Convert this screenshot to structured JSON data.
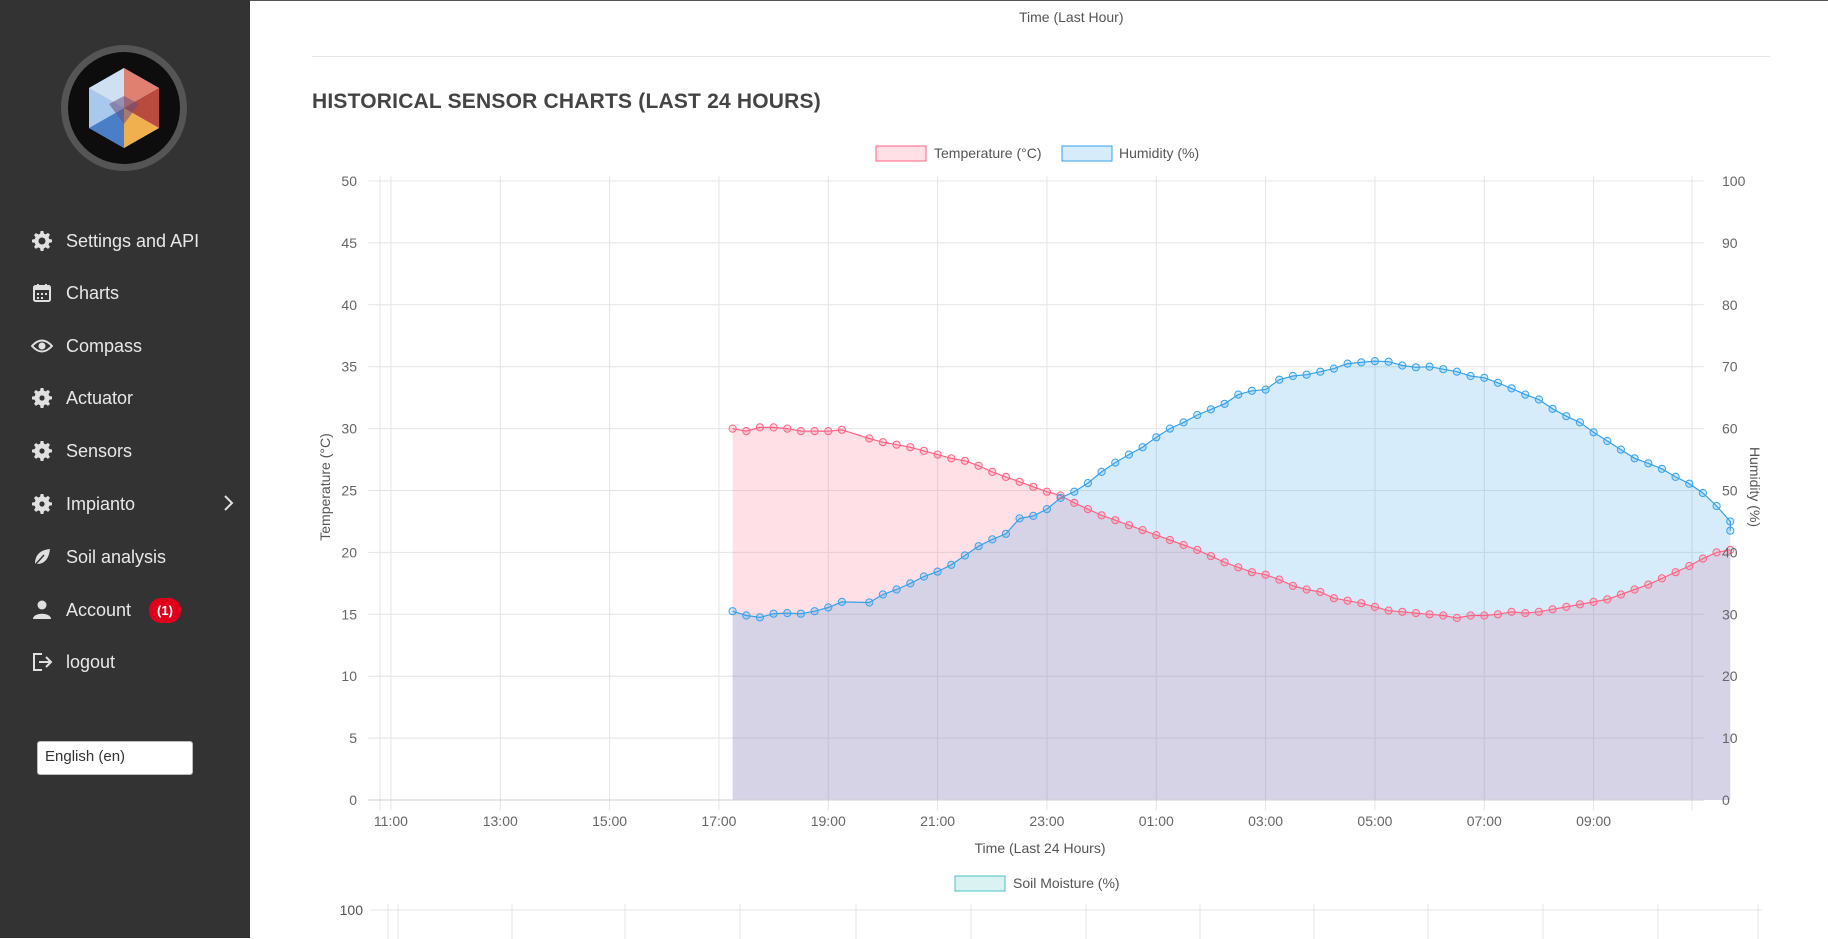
{
  "sidebar": {
    "items": [
      {
        "label": "Settings and API",
        "icon": "gear-icon"
      },
      {
        "label": "Charts",
        "icon": "calendar-icon"
      },
      {
        "label": "Compass",
        "icon": "eye-icon"
      },
      {
        "label": "Actuator",
        "icon": "gear-icon"
      },
      {
        "label": "Sensors",
        "icon": "gear-icon"
      },
      {
        "label": "Impianto",
        "icon": "gear-icon"
      },
      {
        "label": "Soil analysis",
        "icon": "leaf-icon"
      },
      {
        "label": "Account",
        "icon": "user-icon",
        "badge": "(1)"
      },
      {
        "label": "logout",
        "icon": "logout-icon"
      }
    ],
    "language": "English (en)"
  },
  "main": {
    "prev_chart_xlabel": "Time (Last Hour)",
    "section_title": "HISTORICAL SENSOR CHARTS (LAST 24 HOURS)",
    "next_chart_legend": "Soil Moisture (%)",
    "next_chart_ytop": "100"
  },
  "colors": {
    "temperature_line": "#ff6384",
    "temperature_fill": "rgba(255,99,132,0.2)",
    "humidity_line": "#36a2eb",
    "humidity_fill": "rgba(54,162,235,0.2)",
    "soil_line": "#4bc0c0",
    "badge": "#e0001b",
    "sidebar_bg": "#333333"
  },
  "chart_data": {
    "type": "area",
    "xlabel": "Time (Last 24 Hours)",
    "ylabel_left": "Temperature (°C)",
    "ylabel_right": "Humidity (%)",
    "x_ticks": [
      "11:00",
      "13:00",
      "15:00",
      "17:00",
      "19:00",
      "21:00",
      "23:00",
      "01:00",
      "03:00",
      "05:00",
      "07:00",
      "09:00"
    ],
    "x_range_hours": [
      10.8,
      34.8
    ],
    "ylim_left": [
      0,
      50
    ],
    "ylim_right": [
      0,
      100
    ],
    "y_ticks_left": [
      "0",
      "5",
      "10",
      "15",
      "20",
      "25",
      "30",
      "35",
      "40",
      "45",
      "50"
    ],
    "y_ticks_right": [
      "0",
      "10",
      "20",
      "30",
      "40",
      "50",
      "60",
      "70",
      "80",
      "90",
      "100"
    ],
    "grid": true,
    "legend": "top-center",
    "series": [
      {
        "name": "Temperature (°C)",
        "axis": "left",
        "points": [
          [
            17.25,
            30.0
          ],
          [
            17.5,
            29.8
          ],
          [
            17.75,
            30.1
          ],
          [
            18,
            30.1
          ],
          [
            18.25,
            30.0
          ],
          [
            18.5,
            29.8
          ],
          [
            18.75,
            29.8
          ],
          [
            19,
            29.8
          ],
          [
            19.25,
            29.9
          ],
          [
            19.75,
            29.2
          ],
          [
            20,
            28.9
          ],
          [
            20.25,
            28.7
          ],
          [
            20.5,
            28.5
          ],
          [
            20.75,
            28.2
          ],
          [
            21,
            27.9
          ],
          [
            21.25,
            27.6
          ],
          [
            21.5,
            27.4
          ],
          [
            21.75,
            27.0
          ],
          [
            22,
            26.5
          ],
          [
            22.25,
            26.1
          ],
          [
            22.5,
            25.7
          ],
          [
            22.75,
            25.3
          ],
          [
            23,
            24.9
          ],
          [
            23.25,
            24.6
          ],
          [
            23.5,
            24.0
          ],
          [
            23.75,
            23.5
          ],
          [
            24,
            23.0
          ],
          [
            24.25,
            22.6
          ],
          [
            24.5,
            22.2
          ],
          [
            24.75,
            21.8
          ],
          [
            25,
            21.4
          ],
          [
            25.25,
            21.0
          ],
          [
            25.5,
            20.6
          ],
          [
            25.75,
            20.2
          ],
          [
            26,
            19.7
          ],
          [
            26.25,
            19.2
          ],
          [
            26.5,
            18.8
          ],
          [
            26.75,
            18.4
          ],
          [
            27,
            18.2
          ],
          [
            27.25,
            17.8
          ],
          [
            27.5,
            17.3
          ],
          [
            27.75,
            17.0
          ],
          [
            28,
            16.8
          ],
          [
            28.25,
            16.3
          ],
          [
            28.5,
            16.1
          ],
          [
            28.75,
            15.9
          ],
          [
            29,
            15.6
          ],
          [
            29.25,
            15.3
          ],
          [
            29.5,
            15.2
          ],
          [
            29.75,
            15.1
          ],
          [
            30,
            15.0
          ],
          [
            30.25,
            14.9
          ],
          [
            30.5,
            14.7
          ],
          [
            30.75,
            14.9
          ],
          [
            31,
            14.9
          ],
          [
            31.25,
            15.0
          ],
          [
            31.5,
            15.2
          ],
          [
            31.75,
            15.1
          ],
          [
            32,
            15.2
          ],
          [
            32.25,
            15.4
          ],
          [
            32.5,
            15.6
          ],
          [
            32.75,
            15.8
          ],
          [
            33,
            16.0
          ],
          [
            33.25,
            16.2
          ],
          [
            33.5,
            16.6
          ],
          [
            33.75,
            17.0
          ],
          [
            34,
            17.4
          ],
          [
            34.25,
            17.9
          ],
          [
            34.5,
            18.4
          ],
          [
            34.75,
            18.9
          ],
          [
            35,
            19.5
          ],
          [
            35.25,
            20.0
          ],
          [
            35.5,
            20.2
          ]
        ]
      },
      {
        "name": "Humidity (%)",
        "axis": "right",
        "points": [
          [
            17.25,
            30.5
          ],
          [
            17.5,
            29.8
          ],
          [
            17.75,
            29.5
          ],
          [
            18,
            30.1
          ],
          [
            18.25,
            30.2
          ],
          [
            18.5,
            30.1
          ],
          [
            18.75,
            30.5
          ],
          [
            19,
            31.1
          ],
          [
            19.25,
            32.0
          ],
          [
            19.75,
            31.9
          ],
          [
            20,
            33.2
          ],
          [
            20.25,
            34.0
          ],
          [
            20.5,
            35.0
          ],
          [
            20.75,
            36.1
          ],
          [
            21,
            36.9
          ],
          [
            21.25,
            38.0
          ],
          [
            21.5,
            39.5
          ],
          [
            21.75,
            41.0
          ],
          [
            22,
            42.1
          ],
          [
            22.25,
            43.0
          ],
          [
            22.5,
            45.5
          ],
          [
            22.75,
            45.9
          ],
          [
            23,
            47.0
          ],
          [
            23.25,
            48.8
          ],
          [
            23.5,
            49.8
          ],
          [
            23.75,
            51.2
          ],
          [
            24,
            53.0
          ],
          [
            24.25,
            54.5
          ],
          [
            24.5,
            55.8
          ],
          [
            24.75,
            57.0
          ],
          [
            25,
            58.6
          ],
          [
            25.25,
            60.0
          ],
          [
            25.5,
            61.0
          ],
          [
            25.75,
            62.2
          ],
          [
            26,
            63.1
          ],
          [
            26.25,
            64.0
          ],
          [
            26.5,
            65.5
          ],
          [
            26.75,
            66.1
          ],
          [
            27,
            66.3
          ],
          [
            27.25,
            67.9
          ],
          [
            27.5,
            68.5
          ],
          [
            27.75,
            68.7
          ],
          [
            28,
            69.2
          ],
          [
            28.25,
            69.7
          ],
          [
            28.5,
            70.5
          ],
          [
            28.75,
            70.7
          ],
          [
            29,
            70.9
          ],
          [
            29.25,
            70.8
          ],
          [
            29.5,
            70.2
          ],
          [
            29.75,
            69.9
          ],
          [
            30,
            70.0
          ],
          [
            30.25,
            69.6
          ],
          [
            30.5,
            69.2
          ],
          [
            30.75,
            68.5
          ],
          [
            31,
            68.2
          ],
          [
            31.25,
            67.4
          ],
          [
            31.5,
            66.5
          ],
          [
            31.75,
            65.5
          ],
          [
            32,
            64.7
          ],
          [
            32.25,
            63.2
          ],
          [
            32.5,
            62.0
          ],
          [
            32.75,
            61.0
          ],
          [
            33,
            59.4
          ],
          [
            33.25,
            58.0
          ],
          [
            33.5,
            56.6
          ],
          [
            33.75,
            55.2
          ],
          [
            34,
            54.4
          ],
          [
            34.25,
            53.5
          ],
          [
            34.5,
            52.2
          ],
          [
            34.75,
            51.1
          ],
          [
            35,
            49.6
          ],
          [
            35.25,
            47.5
          ],
          [
            35.5,
            45.0
          ],
          [
            35.75,
            43.5
          ]
        ]
      }
    ]
  }
}
